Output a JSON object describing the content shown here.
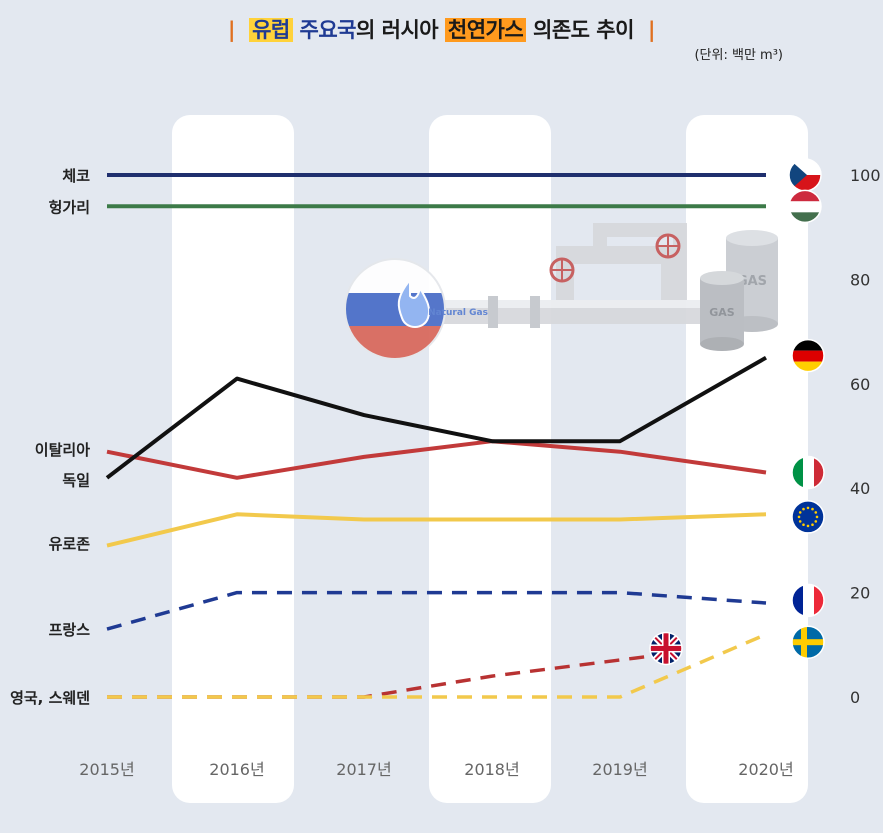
{
  "title": {
    "part1": "유럽",
    "part2": "주요국",
    "part3": "의 러시아 ",
    "part4": "천연가스",
    "part5": " 의존도 추이",
    "divider": "|"
  },
  "unit_label": "(단위: 백만 m³)",
  "illustration": {
    "pipe_label": "Natural Gas",
    "tank_label_1": "GAS",
    "tank_label_2": "GAS"
  },
  "colors": {
    "background": "#e3e8f0",
    "column": "#ffffff",
    "czech": "#1f2f6e",
    "hungary": "#3c7a48",
    "germany": "#111111",
    "italy": "#c23a3a",
    "eurozone": "#f2c94c",
    "france": "#1f3a93",
    "uk": "#b83232",
    "sweden": "#f2c94c"
  },
  "chart_data": {
    "type": "line",
    "title": "유럽 주요국의 러시아 천연가스 의존도 추이",
    "ylabel": "(단위: 백만 m³)",
    "xlabel": "",
    "categories": [
      "2015년",
      "2016년",
      "2017년",
      "2018년",
      "2019년",
      "2020년"
    ],
    "ylim": [
      0,
      100
    ],
    "yticks": [
      0,
      20,
      40,
      60,
      80,
      100
    ],
    "series": [
      {
        "name": "체코",
        "key": "czech",
        "values": [
          100,
          100,
          100,
          100,
          100,
          100
        ],
        "style": "solid",
        "flag": "czech-flag-icon"
      },
      {
        "name": "헝가리",
        "key": "hungary",
        "values": [
          94,
          94,
          94,
          94,
          94,
          94
        ],
        "style": "solid",
        "flag": "hungary-flag-icon"
      },
      {
        "name": "독일",
        "key": "germany",
        "values": [
          42,
          61,
          54,
          49,
          49,
          65
        ],
        "style": "solid",
        "flag": "germany-flag-icon"
      },
      {
        "name": "이탈리아",
        "key": "italy",
        "values": [
          47,
          42,
          46,
          49,
          47,
          43
        ],
        "style": "solid",
        "flag": "italy-flag-icon"
      },
      {
        "name": "유로존",
        "key": "eurozone",
        "values": [
          29,
          35,
          34,
          34,
          34,
          35
        ],
        "style": "solid",
        "flag": "eu-flag-icon"
      },
      {
        "name": "프랑스",
        "key": "france",
        "values": [
          13,
          20,
          20,
          20,
          20,
          18
        ],
        "style": "dashed",
        "flag": "france-flag-icon"
      },
      {
        "name": "영국",
        "key": "uk",
        "values": [
          0,
          0,
          0,
          4,
          8,
          null
        ],
        "style": "dashed",
        "flag": "uk-flag-icon"
      },
      {
        "name": "스웨덴",
        "key": "sweden",
        "values": [
          0,
          0,
          0,
          0,
          0,
          12
        ],
        "style": "dashed",
        "flag": "sweden-flag-icon"
      }
    ],
    "left_labels": [
      {
        "text": "체코",
        "at": 100
      },
      {
        "text": "헝가리",
        "at": 94
      },
      {
        "text": "이탈리아",
        "at": 47.5
      },
      {
        "text": "독일",
        "at": 41.7
      },
      {
        "text": "유로존",
        "at": 29.5
      },
      {
        "text": "프랑스",
        "at": 13
      },
      {
        "text": "영국, 스웨덴",
        "at": 0
      }
    ]
  }
}
